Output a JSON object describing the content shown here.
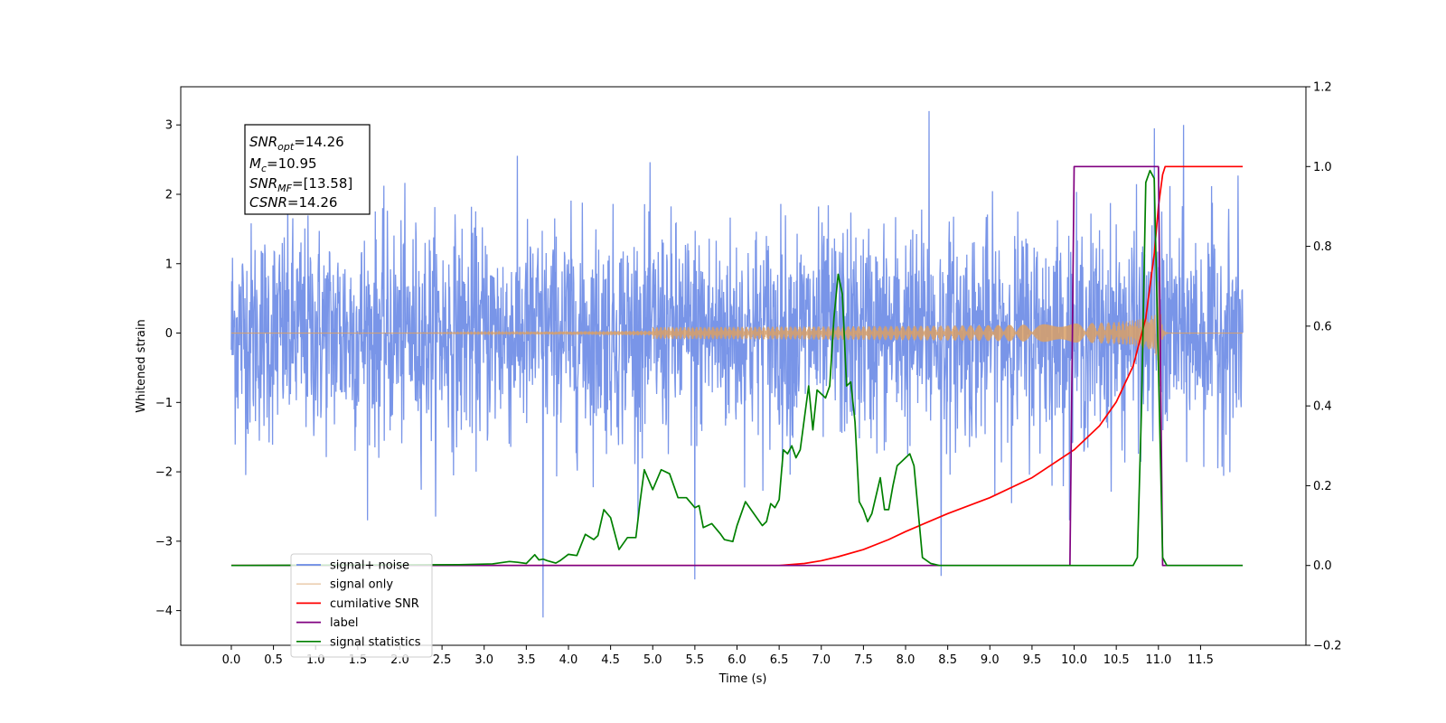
{
  "chart_data": {
    "type": "line",
    "xlabel": "Time (s)",
    "ylabel": "Whitened strain",
    "xlim": [
      -0.6,
      12.75
    ],
    "ylim": [
      -4.5,
      3.55
    ],
    "ylim_right": [
      -0.2,
      1.2
    ],
    "x_ticks": [
      "0.0",
      "0.5",
      "1.0",
      "1.5",
      "2.0",
      "2.5",
      "3.0",
      "3.5",
      "4.0",
      "4.5",
      "5.0",
      "5.5",
      "6.0",
      "6.5",
      "7.0",
      "7.5",
      "8.0",
      "8.5",
      "9.0",
      "9.5",
      "10.0",
      "10.5",
      "11.0",
      "11.5"
    ],
    "y_ticks": [
      "3",
      "2",
      "1",
      "0",
      "−1",
      "−2",
      "−3",
      "−4"
    ],
    "y_ticks_right": [
      "1.2",
      "1.0",
      "0.8",
      "0.6",
      "0.4",
      "0.2",
      "0.0",
      "−0.2"
    ],
    "annotation": {
      "lines": [
        {
          "sym": "SNR",
          "sub": "opt",
          "val": "=14.26"
        },
        {
          "sym": "M",
          "sub": "c",
          "val": "=10.95"
        },
        {
          "sym": "SNR",
          "sub": "MF",
          "val": "=[13.58]"
        },
        {
          "sym": "CSNR",
          "sub": "",
          "val": "=14.26"
        }
      ]
    },
    "legend": {
      "placement": "lower-left",
      "entries": [
        "signal+ noise",
        "signal only",
        "cumilative SNR",
        "label",
        "signal statistics"
      ],
      "hidden_entry": "signal only"
    },
    "series": [
      {
        "name": "signal+ noise",
        "axis": "left",
        "color": "#6a89e6",
        "x_range": [
          0,
          12.0
        ],
        "noise_envelope_typical": [
          -1.8,
          1.8
        ],
        "notable_peaks": [
          [
            8.28,
            3.2
          ],
          [
            3.7,
            -4.1
          ],
          [
            11.3,
            3.0
          ],
          [
            5.5,
            -3.55
          ],
          [
            8.42,
            -3.5
          ],
          [
            10.95,
            2.95
          ]
        ]
      },
      {
        "name": "signal only",
        "axis": "left",
        "color": "#d9a066",
        "chirp": {
          "start": 5.0,
          "merger": 11.0,
          "end": 12.0,
          "peak_amplitude": 1.25
        }
      },
      {
        "name": "cumilative SNR",
        "axis": "right",
        "color": "#ff0000",
        "x": [
          0,
          6.5,
          6.8,
          7.0,
          7.2,
          7.5,
          7.8,
          8.0,
          8.5,
          9.0,
          9.5,
          10.0,
          10.3,
          10.5,
          10.7,
          10.85,
          10.95,
          11.0,
          11.05,
          11.08,
          12.0
        ],
        "y": [
          0,
          0,
          0.005,
          0.012,
          0.022,
          0.04,
          0.065,
          0.085,
          0.13,
          0.17,
          0.22,
          0.29,
          0.35,
          0.41,
          0.5,
          0.62,
          0.78,
          0.9,
          0.98,
          1.0,
          1.0
        ]
      },
      {
        "name": "label",
        "axis": "right",
        "color": "#800080",
        "x": [
          0,
          9.95,
          10.0,
          11.0,
          11.05,
          12.0
        ],
        "y": [
          0,
          0,
          1,
          1,
          0,
          0
        ]
      },
      {
        "name": "signal statistics",
        "axis": "right",
        "color": "#008000",
        "x": [
          0,
          2.7,
          3.1,
          3.3,
          3.4,
          3.5,
          3.6,
          3.65,
          3.7,
          3.75,
          3.85,
          3.9,
          4.0,
          4.1,
          4.2,
          4.3,
          4.35,
          4.42,
          4.5,
          4.6,
          4.7,
          4.8,
          4.85,
          4.9,
          5.0,
          5.1,
          5.2,
          5.25,
          5.3,
          5.4,
          5.5,
          5.55,
          5.6,
          5.7,
          5.8,
          5.85,
          5.95,
          6.0,
          6.1,
          6.2,
          6.3,
          6.35,
          6.4,
          6.45,
          6.5,
          6.55,
          6.6,
          6.65,
          6.7,
          6.75,
          6.8,
          6.85,
          6.9,
          6.95,
          7.0,
          7.05,
          7.1,
          7.15,
          7.2,
          7.25,
          7.3,
          7.35,
          7.4,
          7.45,
          7.5,
          7.55,
          7.6,
          7.7,
          7.75,
          7.8,
          7.85,
          7.9,
          8.0,
          8.05,
          8.1,
          8.2,
          8.3,
          8.4,
          8.5,
          8.6,
          10.7,
          10.75,
          10.8,
          10.85,
          10.9,
          10.95,
          11.0,
          11.05,
          11.1,
          12.0
        ],
        "y": [
          0,
          0.002,
          0.004,
          0.01,
          0.008,
          0.005,
          0.027,
          0.014,
          0.016,
          0.012,
          0.006,
          0.012,
          0.028,
          0.025,
          0.078,
          0.065,
          0.075,
          0.14,
          0.12,
          0.04,
          0.07,
          0.07,
          0.16,
          0.24,
          0.19,
          0.24,
          0.23,
          0.2,
          0.17,
          0.17,
          0.145,
          0.15,
          0.095,
          0.105,
          0.08,
          0.065,
          0.06,
          0.1,
          0.16,
          0.13,
          0.1,
          0.11,
          0.155,
          0.145,
          0.165,
          0.29,
          0.28,
          0.3,
          0.27,
          0.29,
          0.37,
          0.45,
          0.34,
          0.44,
          0.43,
          0.42,
          0.45,
          0.62,
          0.73,
          0.68,
          0.45,
          0.46,
          0.36,
          0.16,
          0.14,
          0.11,
          0.13,
          0.22,
          0.14,
          0.14,
          0.2,
          0.25,
          0.27,
          0.28,
          0.25,
          0.02,
          0.005,
          0,
          0,
          0,
          0,
          0.02,
          0.4,
          0.96,
          0.99,
          0.97,
          0.5,
          0.02,
          0,
          0
        ]
      }
    ]
  }
}
